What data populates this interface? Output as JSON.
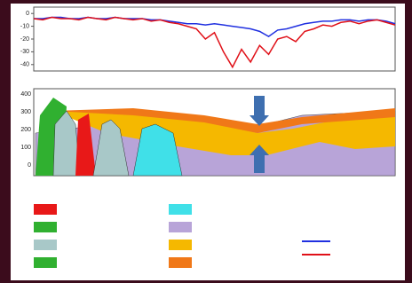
{
  "chart_data": {
    "type": "line",
    "x": [
      0,
      1,
      2,
      3,
      4,
      5,
      6,
      7,
      8,
      9,
      10,
      11,
      12,
      13,
      14,
      15,
      16,
      17,
      18,
      19,
      20,
      21,
      22,
      23,
      24,
      25,
      26,
      27,
      28,
      29,
      30,
      31,
      32,
      33,
      34,
      35,
      36,
      37,
      38,
      39,
      40
    ],
    "series": [
      {
        "color": "#2030e0",
        "values": [
          -4,
          -4,
          -3,
          -3,
          -4,
          -4,
          -3,
          -4,
          -4,
          -3,
          -4,
          -4,
          -4,
          -5,
          -5,
          -6,
          -7,
          -8,
          -8,
          -9,
          -8,
          -9,
          -10,
          -11,
          -12,
          -14,
          -18,
          -13,
          -12,
          -10,
          -8,
          -7,
          -6,
          -6,
          -5,
          -5,
          -6,
          -5,
          -5,
          -6,
          -8
        ]
      },
      {
        "color": "#e01018",
        "values": [
          -4,
          -5,
          -3,
          -4,
          -4,
          -5,
          -3,
          -4,
          -5,
          -3,
          -4,
          -5,
          -4,
          -6,
          -5,
          -7,
          -8,
          -10,
          -12,
          -20,
          -15,
          -30,
          -42,
          -28,
          -38,
          -25,
          -32,
          -20,
          -18,
          -22,
          -14,
          -12,
          -9,
          -10,
          -7,
          -6,
          -8,
          -6,
          -5,
          -7,
          -9
        ]
      }
    ],
    "xlim": [
      0,
      40
    ],
    "ylim": [
      -45,
      5
    ],
    "yticks": [
      0,
      -10,
      -20,
      -30,
      -40
    ]
  },
  "section": {
    "yticks": [
      "400",
      "300",
      "200",
      "100",
      "0"
    ]
  }
}
